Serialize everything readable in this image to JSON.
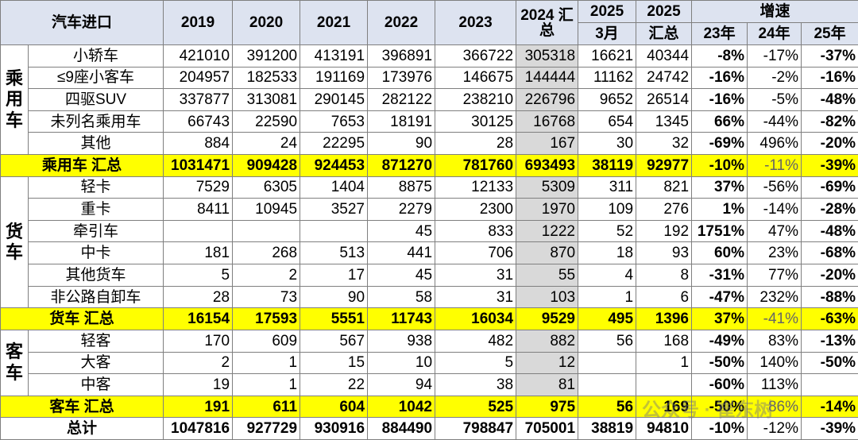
{
  "header": {
    "corner": "汽车进口",
    "years": [
      "2019",
      "2020",
      "2021",
      "2022",
      "2023"
    ],
    "total_2024": "2024 汇总",
    "col_2025_march": [
      "2025",
      "3月"
    ],
    "col_2025_total": [
      "2025",
      "汇总"
    ],
    "growth": "增速",
    "growth_years": [
      "23年",
      "24年",
      "25年"
    ]
  },
  "sections": [
    {
      "label": "乘用车",
      "rows": [
        {
          "name": "小轿车",
          "values": [
            421010,
            391200,
            413191,
            396891,
            366722,
            305318,
            16621,
            40344,
            "-8%",
            "-17%",
            "-37%"
          ]
        },
        {
          "name": "≤9座小客车",
          "values": [
            204957,
            182533,
            191169,
            173976,
            146675,
            144444,
            11162,
            24742,
            "-16%",
            "-2%",
            "-16%"
          ]
        },
        {
          "name": "四驱SUV",
          "values": [
            337877,
            313081,
            290145,
            282122,
            238210,
            226796,
            9652,
            26514,
            "-16%",
            "-5%",
            "-48%"
          ]
        },
        {
          "name": "未列名乘用车",
          "values": [
            66743,
            22590,
            7653,
            18191,
            30125,
            16768,
            654,
            1345,
            "66%",
            "-44%",
            "-82%"
          ]
        },
        {
          "name": "其他",
          "values": [
            884,
            24,
            22295,
            90,
            28,
            167,
            30,
            32,
            "-69%",
            "496%",
            "-20%"
          ]
        }
      ],
      "total": {
        "name": "乘用车 汇总",
        "values": [
          1031471,
          909428,
          924453,
          871270,
          781760,
          693493,
          38119,
          92977,
          "-10%",
          "-11%",
          "-39%"
        ]
      }
    },
    {
      "label": "货车",
      "rows": [
        {
          "name": "轻卡",
          "values": [
            7529,
            6305,
            1404,
            8875,
            12133,
            5309,
            311,
            821,
            "37%",
            "-56%",
            "-69%"
          ]
        },
        {
          "name": "重卡",
          "values": [
            8411,
            10945,
            3527,
            2279,
            2300,
            1970,
            109,
            276,
            "1%",
            "-14%",
            "-28%"
          ]
        },
        {
          "name": "牵引车",
          "values": [
            null,
            null,
            null,
            45,
            833,
            1222,
            52,
            192,
            "1751%",
            "47%",
            "-48%"
          ]
        },
        {
          "name": "中卡",
          "values": [
            181,
            268,
            513,
            441,
            706,
            870,
            18,
            93,
            "60%",
            "23%",
            "-68%"
          ]
        },
        {
          "name": "其他货车",
          "values": [
            5,
            2,
            17,
            45,
            31,
            55,
            4,
            8,
            "-31%",
            "77%",
            "-20%"
          ]
        },
        {
          "name": "非公路自卸车",
          "values": [
            28,
            73,
            90,
            58,
            31,
            103,
            1,
            6,
            "-47%",
            "232%",
            "-88%"
          ]
        }
      ],
      "total": {
        "name": "货车 汇总",
        "values": [
          16154,
          17593,
          5551,
          11743,
          16034,
          9529,
          495,
          1396,
          "37%",
          "-41%",
          "-63%"
        ]
      }
    },
    {
      "label": "客车",
      "rows": [
        {
          "name": "轻客",
          "values": [
            170,
            609,
            567,
            938,
            482,
            882,
            56,
            168,
            "-49%",
            "83%",
            "-13%"
          ]
        },
        {
          "name": "大客",
          "values": [
            2,
            1,
            15,
            10,
            5,
            12,
            null,
            1,
            "-50%",
            "140%",
            "-50%"
          ]
        },
        {
          "name": "中客",
          "values": [
            19,
            1,
            22,
            94,
            38,
            81,
            null,
            null,
            "-60%",
            "113%",
            null
          ]
        }
      ],
      "total": {
        "name": "客车 汇总",
        "values": [
          191,
          611,
          604,
          1042,
          525,
          975,
          56,
          169,
          "-50%",
          "86%",
          "-14%"
        ]
      }
    }
  ],
  "grand_total": {
    "name": "总计",
    "values": [
      1047816,
      927729,
      930916,
      884490,
      798847,
      705001,
      38819,
      94810,
      "-10%",
      "-12%",
      "-39%"
    ]
  },
  "watermark": "公众号 · 崔东树"
}
